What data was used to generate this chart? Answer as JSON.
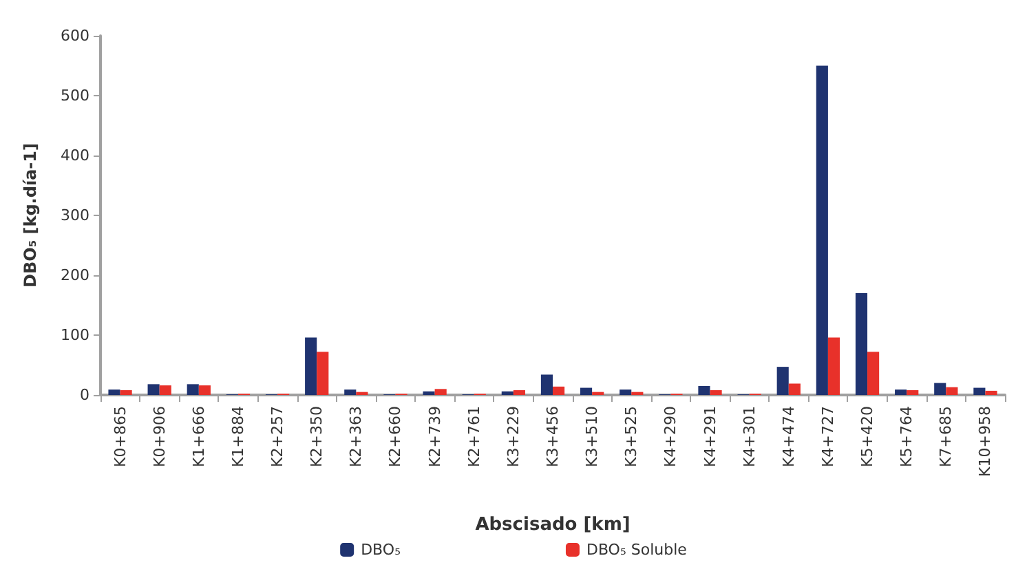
{
  "chart_data": {
    "type": "bar",
    "xlabel": "Abscisado [km]",
    "ylabel": "DBO₅ [kg.día-1]",
    "categories": [
      "K0+865",
      "K0+906",
      "K1+666",
      "K1+884",
      "K2+257",
      "K2+350",
      "K2+363",
      "K2+660",
      "K2+739",
      "K2+761",
      "K3+229",
      "K3+456",
      "K3+510",
      "K3+525",
      "K4+290",
      "K4+291",
      "K4+301",
      "K4+474",
      "K4+727",
      "K5+420",
      "K5+764",
      "K7+685",
      "K10+958"
    ],
    "series": [
      {
        "name": "DBO₅",
        "color": "#1f3370",
        "values": [
          9,
          18,
          18,
          1,
          1,
          96,
          9,
          1,
          6,
          1,
          6,
          34,
          12,
          9,
          1,
          15,
          1,
          47,
          550,
          170,
          9,
          20,
          12
        ]
      },
      {
        "name": "DBO₅ Soluble",
        "color": "#e8312a",
        "values": [
          8,
          16,
          16,
          2,
          2,
          72,
          5,
          2,
          10,
          2,
          8,
          14,
          5,
          5,
          2,
          8,
          2,
          19,
          96,
          72,
          8,
          13,
          7
        ]
      }
    ],
    "ylim": [
      0,
      600
    ],
    "yticks": [
      0,
      100,
      200,
      300,
      400,
      500,
      600
    ],
    "grid": false,
    "legend": "bottom"
  }
}
